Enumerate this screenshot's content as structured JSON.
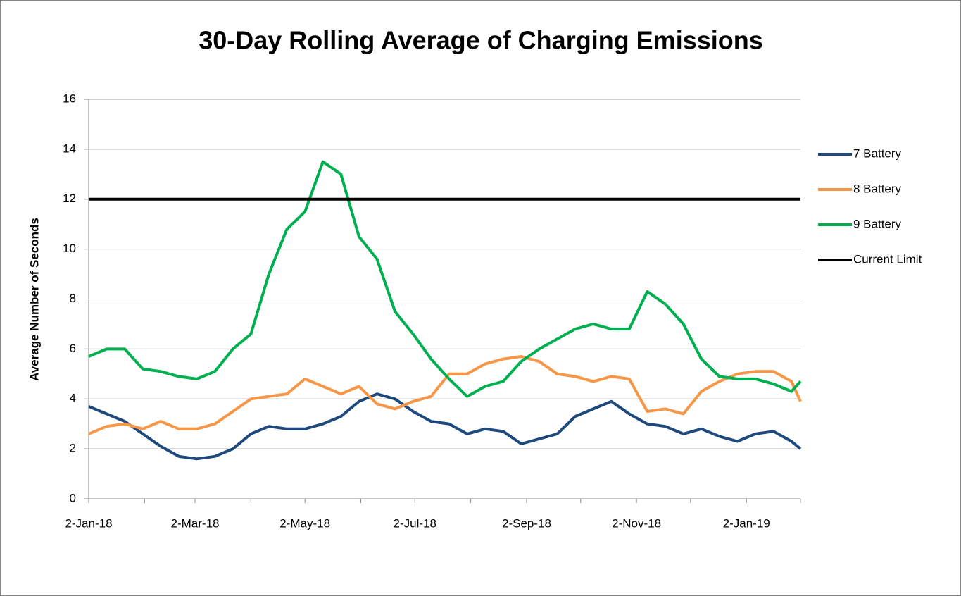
{
  "chart_data": {
    "type": "line",
    "title": "30-Day Rolling Average of Charging Emissions",
    "y_label": "Average Number of Seconds",
    "x": [
      "2018-01-02",
      "2018-01-12",
      "2018-01-22",
      "2018-02-01",
      "2018-02-11",
      "2018-02-21",
      "2018-03-03",
      "2018-03-13",
      "2018-03-23",
      "2018-04-02",
      "2018-04-12",
      "2018-04-22",
      "2018-05-02",
      "2018-05-12",
      "2018-05-22",
      "2018-06-01",
      "2018-06-11",
      "2018-06-21",
      "2018-07-01",
      "2018-07-11",
      "2018-07-21",
      "2018-07-31",
      "2018-08-10",
      "2018-08-20",
      "2018-08-30",
      "2018-09-09",
      "2018-09-19",
      "2018-09-29",
      "2018-10-09",
      "2018-10-19",
      "2018-10-29",
      "2018-11-08",
      "2018-11-18",
      "2018-11-28",
      "2018-12-08",
      "2018-12-18",
      "2018-12-28",
      "2019-01-07",
      "2019-01-17",
      "2019-01-27",
      "2019-02-01"
    ],
    "series": [
      {
        "name": "7 Battery",
        "color": "#1f497d",
        "values": [
          3.7,
          3.4,
          3.1,
          2.6,
          2.1,
          1.7,
          1.6,
          1.7,
          2.0,
          2.6,
          2.9,
          2.8,
          2.8,
          3.0,
          3.3,
          3.9,
          4.2,
          4.0,
          3.5,
          3.1,
          3.0,
          2.6,
          2.8,
          2.7,
          2.2,
          2.4,
          2.6,
          3.3,
          3.6,
          3.9,
          3.4,
          3.0,
          2.9,
          2.6,
          2.8,
          2.5,
          2.3,
          2.6,
          2.7,
          2.3,
          2.0
        ]
      },
      {
        "name": "8 Battery",
        "color": "#f79646",
        "values": [
          2.6,
          2.9,
          3.0,
          2.8,
          3.1,
          2.8,
          2.8,
          3.0,
          3.5,
          4.0,
          4.1,
          4.2,
          4.8,
          4.5,
          4.2,
          4.5,
          3.8,
          3.6,
          3.9,
          4.1,
          5.0,
          5.0,
          5.4,
          5.6,
          5.7,
          5.5,
          5.0,
          4.9,
          4.7,
          4.9,
          4.8,
          3.5,
          3.6,
          3.4,
          4.3,
          4.7,
          5.0,
          5.1,
          5.1,
          4.7,
          3.9
        ]
      },
      {
        "name": "9 Battery",
        "color": "#00b050",
        "values": [
          5.7,
          6.0,
          6.0,
          5.2,
          5.1,
          4.9,
          4.8,
          5.1,
          6.0,
          6.6,
          9.0,
          10.8,
          11.5,
          13.5,
          13.0,
          10.5,
          9.6,
          7.5,
          6.6,
          5.6,
          4.8,
          4.1,
          4.5,
          4.7,
          5.5,
          6.0,
          6.4,
          6.8,
          7.0,
          6.8,
          6.8,
          8.3,
          7.8,
          7.0,
          5.6,
          4.9,
          4.8,
          4.8,
          4.6,
          4.3,
          4.7
        ]
      },
      {
        "name": "Current Limit",
        "color": "#000000",
        "values": [
          12,
          12,
          12,
          12,
          12,
          12,
          12,
          12,
          12,
          12,
          12,
          12,
          12,
          12,
          12,
          12,
          12,
          12,
          12,
          12,
          12,
          12,
          12,
          12,
          12,
          12,
          12,
          12,
          12,
          12,
          12,
          12,
          12,
          12,
          12,
          12,
          12,
          12,
          12,
          12,
          12
        ]
      }
    ],
    "xlim": [
      "2018-01-02",
      "2019-02-01"
    ],
    "xticks": [
      {
        "value": "2018-01-02",
        "label": "2-Jan-18"
      },
      {
        "value": "2018-03-02",
        "label": "2-Mar-18"
      },
      {
        "value": "2018-05-02",
        "label": "2-May-18"
      },
      {
        "value": "2018-07-02",
        "label": "2-Jul-18"
      },
      {
        "value": "2018-09-02",
        "label": "2-Sep-18"
      },
      {
        "value": "2018-11-02",
        "label": "2-Nov-18"
      },
      {
        "value": "2019-01-02",
        "label": "2-Jan-19"
      }
    ],
    "xminorticks": [
      "2018-02-02",
      "2018-04-02",
      "2018-06-02",
      "2018-08-02",
      "2018-10-02",
      "2018-12-02",
      "2019-02-01"
    ],
    "ylim": [
      0,
      16
    ],
    "yticks": [
      0,
      2,
      4,
      6,
      8,
      10,
      12,
      14,
      16
    ],
    "grid": true,
    "legend": "right"
  }
}
